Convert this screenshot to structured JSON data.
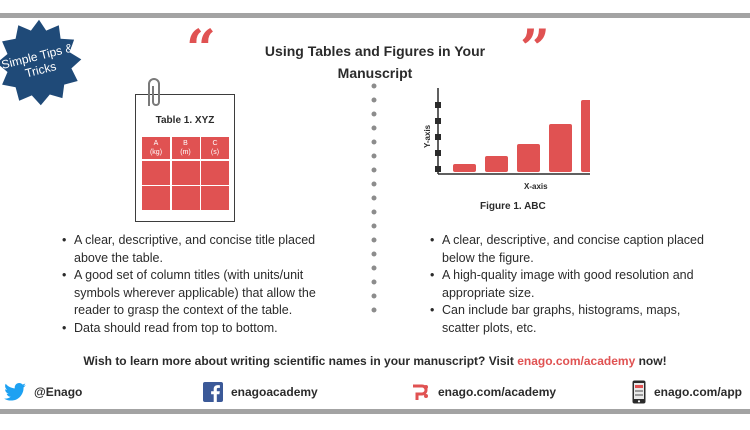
{
  "badge": {
    "text": "Simple Tips & Tricks"
  },
  "header": {
    "title": "Using Tables and Figures in Your Manuscript",
    "quote_open": "“",
    "quote_close": "”"
  },
  "colors": {
    "accent": "#e05252",
    "badge_blue": "#1f4a78",
    "rule_gray": "#a3a3a3"
  },
  "table_illustration": {
    "title": "Table 1. XYZ",
    "columns": [
      {
        "letter": "A",
        "unit": "(kg)"
      },
      {
        "letter": "B",
        "unit": "(m)"
      },
      {
        "letter": "C",
        "unit": "(s)"
      }
    ]
  },
  "figure_illustration": {
    "caption": "Figure 1. ABC",
    "xlabel": "X-axis",
    "ylabel": "Y-axis",
    "bar_values": [
      1,
      2,
      3.5,
      6,
      9
    ]
  },
  "tables_tips": [
    "A clear, descriptive, and concise title placed above the table.",
    "A good set of column titles (with units/unit symbols wherever applicable) that allow the reader to grasp the context of the table.",
    "Data should read from top to bottom."
  ],
  "figures_tips": [
    "A clear, descriptive, and concise caption placed below the figure.",
    "A high-quality image with good resolution and appropriate size.",
    "Can include bar graphs, histograms, maps, scatter plots, etc."
  ],
  "cta": {
    "text": "Wish to learn more about writing scientific names in your manuscript? Visit ",
    "link": "enago.com/academy",
    "suffix": " now!"
  },
  "footer": {
    "twitter": "@Enago",
    "facebook": "enagoacademy",
    "website": "enago.com/academy",
    "app": "enago.com/app",
    "icons": [
      "twitter-icon",
      "facebook-icon",
      "enago-logo-icon",
      "phone-icon"
    ]
  }
}
